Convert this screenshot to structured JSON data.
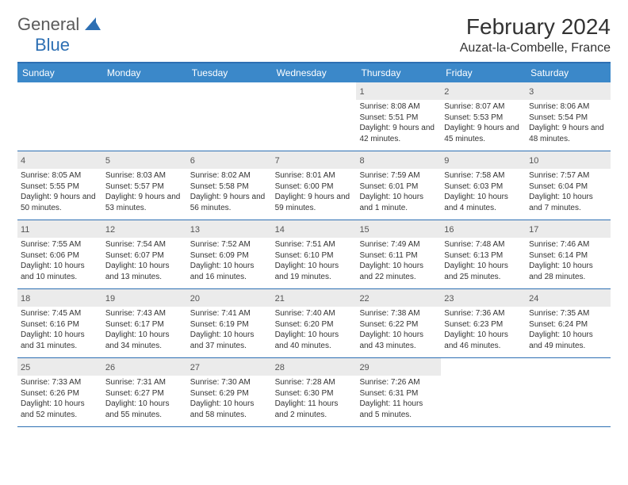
{
  "logo": {
    "general": "General",
    "blue": "Blue"
  },
  "title": "February 2024",
  "location": "Auzat-la-Combelle, France",
  "day_headers": [
    "Sunday",
    "Monday",
    "Tuesday",
    "Wednesday",
    "Thursday",
    "Friday",
    "Saturday"
  ],
  "colors": {
    "header_bg": "#3b88c9",
    "header_text": "#ffffff",
    "border": "#2d6fb3",
    "daynum_bg": "#ebebeb",
    "text": "#333333"
  },
  "weeks": [
    [
      null,
      null,
      null,
      null,
      {
        "n": "1",
        "sunrise": "Sunrise: 8:08 AM",
        "sunset": "Sunset: 5:51 PM",
        "daylight": "Daylight: 9 hours and 42 minutes."
      },
      {
        "n": "2",
        "sunrise": "Sunrise: 8:07 AM",
        "sunset": "Sunset: 5:53 PM",
        "daylight": "Daylight: 9 hours and 45 minutes."
      },
      {
        "n": "3",
        "sunrise": "Sunrise: 8:06 AM",
        "sunset": "Sunset: 5:54 PM",
        "daylight": "Daylight: 9 hours and 48 minutes."
      }
    ],
    [
      {
        "n": "4",
        "sunrise": "Sunrise: 8:05 AM",
        "sunset": "Sunset: 5:55 PM",
        "daylight": "Daylight: 9 hours and 50 minutes."
      },
      {
        "n": "5",
        "sunrise": "Sunrise: 8:03 AM",
        "sunset": "Sunset: 5:57 PM",
        "daylight": "Daylight: 9 hours and 53 minutes."
      },
      {
        "n": "6",
        "sunrise": "Sunrise: 8:02 AM",
        "sunset": "Sunset: 5:58 PM",
        "daylight": "Daylight: 9 hours and 56 minutes."
      },
      {
        "n": "7",
        "sunrise": "Sunrise: 8:01 AM",
        "sunset": "Sunset: 6:00 PM",
        "daylight": "Daylight: 9 hours and 59 minutes."
      },
      {
        "n": "8",
        "sunrise": "Sunrise: 7:59 AM",
        "sunset": "Sunset: 6:01 PM",
        "daylight": "Daylight: 10 hours and 1 minute."
      },
      {
        "n": "9",
        "sunrise": "Sunrise: 7:58 AM",
        "sunset": "Sunset: 6:03 PM",
        "daylight": "Daylight: 10 hours and 4 minutes."
      },
      {
        "n": "10",
        "sunrise": "Sunrise: 7:57 AM",
        "sunset": "Sunset: 6:04 PM",
        "daylight": "Daylight: 10 hours and 7 minutes."
      }
    ],
    [
      {
        "n": "11",
        "sunrise": "Sunrise: 7:55 AM",
        "sunset": "Sunset: 6:06 PM",
        "daylight": "Daylight: 10 hours and 10 minutes."
      },
      {
        "n": "12",
        "sunrise": "Sunrise: 7:54 AM",
        "sunset": "Sunset: 6:07 PM",
        "daylight": "Daylight: 10 hours and 13 minutes."
      },
      {
        "n": "13",
        "sunrise": "Sunrise: 7:52 AM",
        "sunset": "Sunset: 6:09 PM",
        "daylight": "Daylight: 10 hours and 16 minutes."
      },
      {
        "n": "14",
        "sunrise": "Sunrise: 7:51 AM",
        "sunset": "Sunset: 6:10 PM",
        "daylight": "Daylight: 10 hours and 19 minutes."
      },
      {
        "n": "15",
        "sunrise": "Sunrise: 7:49 AM",
        "sunset": "Sunset: 6:11 PM",
        "daylight": "Daylight: 10 hours and 22 minutes."
      },
      {
        "n": "16",
        "sunrise": "Sunrise: 7:48 AM",
        "sunset": "Sunset: 6:13 PM",
        "daylight": "Daylight: 10 hours and 25 minutes."
      },
      {
        "n": "17",
        "sunrise": "Sunrise: 7:46 AM",
        "sunset": "Sunset: 6:14 PM",
        "daylight": "Daylight: 10 hours and 28 minutes."
      }
    ],
    [
      {
        "n": "18",
        "sunrise": "Sunrise: 7:45 AM",
        "sunset": "Sunset: 6:16 PM",
        "daylight": "Daylight: 10 hours and 31 minutes."
      },
      {
        "n": "19",
        "sunrise": "Sunrise: 7:43 AM",
        "sunset": "Sunset: 6:17 PM",
        "daylight": "Daylight: 10 hours and 34 minutes."
      },
      {
        "n": "20",
        "sunrise": "Sunrise: 7:41 AM",
        "sunset": "Sunset: 6:19 PM",
        "daylight": "Daylight: 10 hours and 37 minutes."
      },
      {
        "n": "21",
        "sunrise": "Sunrise: 7:40 AM",
        "sunset": "Sunset: 6:20 PM",
        "daylight": "Daylight: 10 hours and 40 minutes."
      },
      {
        "n": "22",
        "sunrise": "Sunrise: 7:38 AM",
        "sunset": "Sunset: 6:22 PM",
        "daylight": "Daylight: 10 hours and 43 minutes."
      },
      {
        "n": "23",
        "sunrise": "Sunrise: 7:36 AM",
        "sunset": "Sunset: 6:23 PM",
        "daylight": "Daylight: 10 hours and 46 minutes."
      },
      {
        "n": "24",
        "sunrise": "Sunrise: 7:35 AM",
        "sunset": "Sunset: 6:24 PM",
        "daylight": "Daylight: 10 hours and 49 minutes."
      }
    ],
    [
      {
        "n": "25",
        "sunrise": "Sunrise: 7:33 AM",
        "sunset": "Sunset: 6:26 PM",
        "daylight": "Daylight: 10 hours and 52 minutes."
      },
      {
        "n": "26",
        "sunrise": "Sunrise: 7:31 AM",
        "sunset": "Sunset: 6:27 PM",
        "daylight": "Daylight: 10 hours and 55 minutes."
      },
      {
        "n": "27",
        "sunrise": "Sunrise: 7:30 AM",
        "sunset": "Sunset: 6:29 PM",
        "daylight": "Daylight: 10 hours and 58 minutes."
      },
      {
        "n": "28",
        "sunrise": "Sunrise: 7:28 AM",
        "sunset": "Sunset: 6:30 PM",
        "daylight": "Daylight: 11 hours and 2 minutes."
      },
      {
        "n": "29",
        "sunrise": "Sunrise: 7:26 AM",
        "sunset": "Sunset: 6:31 PM",
        "daylight": "Daylight: 11 hours and 5 minutes."
      },
      null,
      null
    ]
  ]
}
